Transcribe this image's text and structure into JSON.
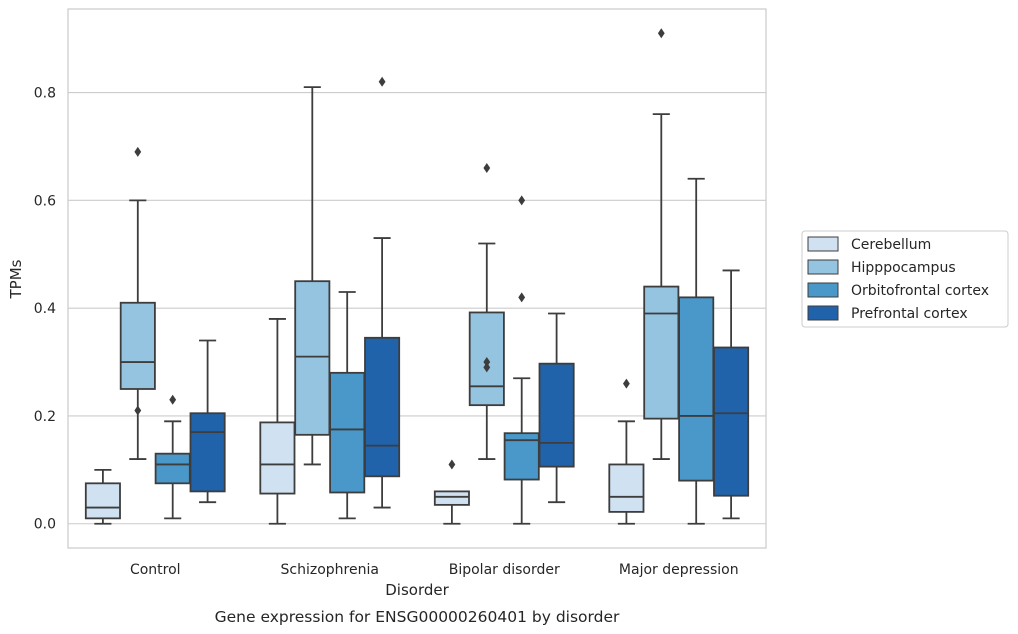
{
  "chart_data": {
    "type": "box",
    "caption": "Gene expression for ENSG00000260401 by disorder",
    "xlabel": "Disorder",
    "ylabel": "TPMs",
    "ylim": [
      -0.045,
      0.955
    ],
    "yticks": [
      0.0,
      0.2,
      0.4,
      0.6,
      0.8
    ],
    "ytick_labels": [
      "0.0",
      "0.2",
      "0.4",
      "0.6",
      "0.8"
    ],
    "grid": "horizontal",
    "legend_position": "right",
    "categories": [
      "Control",
      "Schizophrenia",
      "Bipolar disorder",
      "Major depression"
    ],
    "series": [
      {
        "name": "Cerebellum",
        "color": "#d0e1f2",
        "boxes": [
          {
            "whislo": 0.0,
            "q1": 0.01,
            "med": 0.03,
            "q3": 0.075,
            "whishi": 0.1,
            "fliers": []
          },
          {
            "whislo": 0.0,
            "q1": 0.056,
            "med": 0.11,
            "q3": 0.188,
            "whishi": 0.38,
            "fliers": []
          },
          {
            "whislo": 0.0,
            "q1": 0.035,
            "med": 0.05,
            "q3": 0.06,
            "whishi": 0.06,
            "fliers": [
              0.11
            ]
          },
          {
            "whislo": 0.0,
            "q1": 0.022,
            "med": 0.05,
            "q3": 0.11,
            "whishi": 0.19,
            "fliers": [
              0.26
            ]
          }
        ]
      },
      {
        "name": "Hipppocampus",
        "color": "#94c4df",
        "boxes": [
          {
            "whislo": 0.12,
            "q1": 0.25,
            "med": 0.3,
            "q3": 0.41,
            "whishi": 0.6,
            "fliers": [
              0.21,
              0.69
            ]
          },
          {
            "whislo": 0.11,
            "q1": 0.165,
            "med": 0.31,
            "q3": 0.45,
            "whishi": 0.81,
            "fliers": []
          },
          {
            "whislo": 0.12,
            "q1": 0.22,
            "med": 0.255,
            "q3": 0.392,
            "whishi": 0.52,
            "fliers": [
              0.29,
              0.3,
              0.66
            ]
          },
          {
            "whislo": 0.12,
            "q1": 0.195,
            "med": 0.39,
            "q3": 0.44,
            "whishi": 0.76,
            "fliers": [
              0.91
            ]
          }
        ]
      },
      {
        "name": "Orbitofrontal cortex",
        "color": "#4a98c9",
        "boxes": [
          {
            "whislo": 0.01,
            "q1": 0.075,
            "med": 0.11,
            "q3": 0.13,
            "whishi": 0.19,
            "fliers": [
              0.23
            ]
          },
          {
            "whislo": 0.01,
            "q1": 0.058,
            "med": 0.175,
            "q3": 0.28,
            "whishi": 0.43,
            "fliers": []
          },
          {
            "whislo": 0.0,
            "q1": 0.082,
            "med": 0.155,
            "q3": 0.168,
            "whishi": 0.27,
            "fliers": [
              0.42,
              0.6
            ]
          },
          {
            "whislo": 0.0,
            "q1": 0.08,
            "med": 0.2,
            "q3": 0.42,
            "whishi": 0.64,
            "fliers": []
          }
        ]
      },
      {
        "name": "Prefrontal cortex",
        "color": "#2163aa",
        "boxes": [
          {
            "whislo": 0.04,
            "q1": 0.06,
            "med": 0.17,
            "q3": 0.205,
            "whishi": 0.34,
            "fliers": []
          },
          {
            "whislo": 0.03,
            "q1": 0.088,
            "med": 0.145,
            "q3": 0.345,
            "whishi": 0.53,
            "fliers": [
              0.82
            ]
          },
          {
            "whislo": 0.04,
            "q1": 0.106,
            "med": 0.15,
            "q3": 0.297,
            "whishi": 0.39,
            "fliers": []
          },
          {
            "whislo": 0.01,
            "q1": 0.052,
            "med": 0.205,
            "q3": 0.327,
            "whishi": 0.47,
            "fliers": []
          }
        ]
      }
    ]
  }
}
